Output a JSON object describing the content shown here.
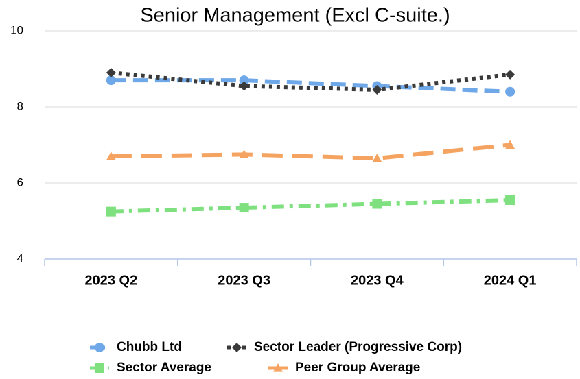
{
  "chart_data": {
    "type": "line",
    "title": "Senior Management (Excl C-suite.)",
    "categories": [
      "2023 Q2",
      "2023 Q3",
      "2023 Q4",
      "2024 Q1"
    ],
    "series": [
      {
        "name": "Chubb Ltd",
        "color": "#6fa8e8",
        "marker": "circle",
        "dash": "dashed",
        "values": [
          8.7,
          8.7,
          8.55,
          8.4
        ]
      },
      {
        "name": "Sector Leader (Progressive Corp)",
        "color": "#3a3a3a",
        "marker": "diamond",
        "dash": "dotted",
        "values": [
          8.9,
          8.55,
          8.45,
          8.85
        ]
      },
      {
        "name": "Sector Average",
        "color": "#7ee07e",
        "marker": "square",
        "dash": "dash-dot",
        "values": [
          5.25,
          5.35,
          5.45,
          5.55
        ]
      },
      {
        "name": "Peer Group Average",
        "color": "#f4a460",
        "marker": "triangle",
        "dash": "long-dash",
        "values": [
          6.7,
          6.75,
          6.65,
          7.0
        ]
      }
    ],
    "ylim": [
      4,
      10
    ],
    "yticks": [
      4,
      6,
      8,
      10
    ],
    "grid": true,
    "legend": "bottom"
  }
}
